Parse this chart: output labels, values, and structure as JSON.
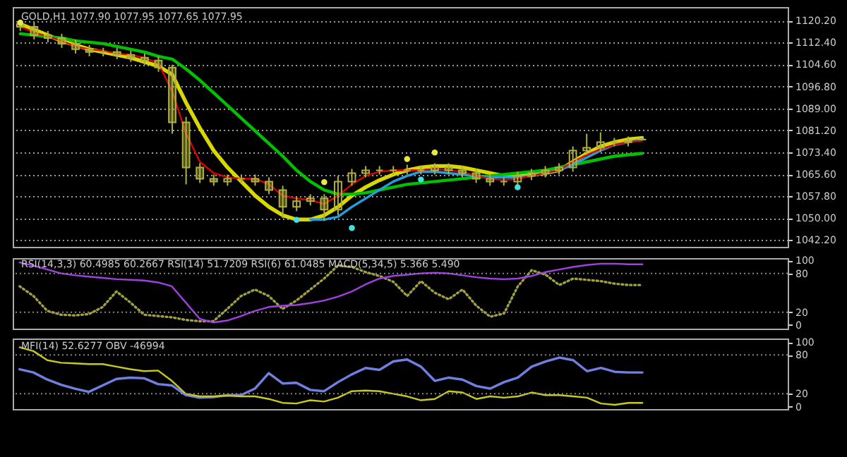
{
  "chart_data": [
    {
      "type": "candlestick",
      "title": "GOLD,H1 1077.90 1077.95 1077.65 1077.95",
      "color": "#b0b040",
      "categories": [
        null,
        null,
        null,
        null,
        null,
        null,
        null,
        null,
        null,
        null,
        null,
        null,
        null,
        null,
        null,
        null,
        null,
        null,
        null,
        null,
        null,
        null,
        null,
        null,
        null,
        null,
        null,
        null,
        null,
        null,
        null,
        null,
        null,
        null,
        null,
        null,
        null,
        null,
        null,
        null,
        null,
        null,
        null,
        null,
        null,
        null,
        null,
        null,
        null,
        null,
        null,
        null,
        null,
        null,
        null,
        null
      ],
      "ohlc": [
        [
          1119,
          1120,
          1116.5,
          1118
        ],
        [
          1118,
          1119.5,
          1113.5,
          1115
        ],
        [
          1115,
          1116.5,
          1112.5,
          1114
        ],
        [
          1114,
          1115.5,
          1110.5,
          1112
        ],
        [
          1112,
          1113.5,
          1108.5,
          1110
        ],
        [
          1110,
          1111.5,
          1107.5,
          1109
        ],
        [
          1109,
          1110.5,
          1107.5,
          1109
        ],
        [
          1109,
          1110.5,
          1106.5,
          1108
        ],
        [
          1108,
          1109.5,
          1105.5,
          1107
        ],
        [
          1107,
          1108.5,
          1104.5,
          1106
        ],
        [
          1106,
          1107.5,
          1102,
          1103.5
        ],
        [
          1103.5,
          1104.5,
          1080,
          1084
        ],
        [
          1084,
          1086,
          1062,
          1068
        ],
        [
          1068,
          1069.5,
          1062.5,
          1064
        ],
        [
          1064,
          1065.5,
          1061.5,
          1063
        ],
        [
          1063,
          1065.5,
          1061.5,
          1064
        ],
        [
          1064,
          1065.5,
          1062.5,
          1064
        ],
        [
          1064,
          1065.5,
          1061.5,
          1063
        ],
        [
          1063,
          1064.5,
          1058.5,
          1060
        ],
        [
          1060,
          1061.5,
          1050,
          1054
        ],
        [
          1054,
          1057.5,
          1052.5,
          1056
        ],
        [
          1056,
          1058.5,
          1054.5,
          1057
        ],
        [
          1057,
          1058.5,
          1049,
          1053
        ],
        [
          1053,
          1065,
          1051,
          1063
        ],
        [
          1063,
          1067.5,
          1061.5,
          1066
        ],
        [
          1066,
          1068.5,
          1064.5,
          1067
        ],
        [
          1067,
          1068.5,
          1065.5,
          1067
        ],
        [
          1067,
          1068.5,
          1065.5,
          1067
        ],
        [
          1067,
          1069,
          1065.5,
          1067
        ],
        [
          1067,
          1068.5,
          1065.5,
          1067
        ],
        [
          1067,
          1069.5,
          1065.5,
          1068
        ],
        [
          1068,
          1069.5,
          1065.5,
          1067
        ],
        [
          1067,
          1068.5,
          1064.5,
          1066
        ],
        [
          1066,
          1067.5,
          1062.5,
          1064
        ],
        [
          1064,
          1065.5,
          1061.5,
          1063
        ],
        [
          1063,
          1064.5,
          1061.5,
          1063
        ],
        [
          1063,
          1066.5,
          1061.5,
          1065
        ],
        [
          1065,
          1067.5,
          1063.5,
          1066
        ],
        [
          1066,
          1068.5,
          1064.5,
          1067
        ],
        [
          1067,
          1069.5,
          1065.5,
          1068
        ],
        [
          1068,
          1075.5,
          1066.5,
          1074
        ],
        [
          1074,
          1080,
          1072.5,
          1075
        ],
        [
          1075,
          1080.5,
          1073.5,
          1077
        ],
        [
          1077,
          1078.5,
          1075.5,
          1077
        ],
        [
          1077,
          1079,
          1075.5,
          1077.5
        ],
        [
          1077.9,
          1077.95,
          1077.65,
          1077.95
        ],
        null,
        null,
        null,
        null,
        null,
        null,
        null,
        null,
        null,
        null
      ],
      "series": [
        {
          "type": "line",
          "color": "#d8d800",
          "values": [
            1119,
            1117,
            1115,
            1113,
            1111.5,
            1110,
            1109,
            1108,
            1107,
            1105.5,
            1104,
            1101,
            1091,
            1082,
            1074,
            1068,
            1063,
            1058,
            1054,
            1051,
            1049.5,
            1049.5,
            1051,
            1054,
            1058,
            1061,
            1063.5,
            1065.5,
            1067,
            1068,
            1068.5,
            1068.5,
            1068,
            1067,
            1066,
            1065,
            1065,
            1065.5,
            1066,
            1067,
            1070,
            1073,
            1075.5,
            1077,
            1078,
            1078.5,
            null,
            null,
            null,
            null,
            null,
            null,
            null,
            null,
            null,
            null
          ]
        },
        {
          "type": "line",
          "color": "#00c000",
          "values": [
            1115.5,
            1115,
            1114.5,
            1114,
            1113,
            1112.5,
            1112,
            1111,
            1110,
            1109,
            1107.5,
            1106.5,
            1103,
            1099,
            1094.5,
            1090,
            1085.5,
            1081,
            1076.5,
            1072,
            1067,
            1063,
            1060,
            1058.5,
            1058.5,
            1059,
            1060,
            1061,
            1062,
            1062.5,
            1063,
            1063.5,
            1064,
            1064.5,
            1065,
            1065.5,
            1066,
            1066.5,
            1067,
            1068,
            1069,
            1070,
            1071,
            1072,
            1072.5,
            1073,
            null,
            null,
            null,
            null,
            null,
            null,
            null,
            null,
            null,
            null
          ]
        },
        {
          "type": "line",
          "color": "#20a0e0",
          "values": [
            null,
            null,
            null,
            null,
            null,
            null,
            null,
            null,
            null,
            null,
            null,
            null,
            null,
            null,
            null,
            null,
            null,
            null,
            null,
            null,
            null,
            1049.5,
            1049.5,
            1050.5,
            1054,
            1057,
            1060,
            1063,
            1065,
            1066.5,
            1066.5,
            1066,
            1065.5,
            1065,
            1064.5,
            1064.5,
            1064.5,
            1065,
            1066,
            1067,
            1069,
            1071.5,
            1074,
            1076,
            1077,
            1078,
            null,
            null,
            null,
            null,
            null,
            null,
            null,
            null,
            null,
            null
          ]
        },
        {
          "type": "line",
          "color": "#e00000",
          "values": [
            1118,
            1116,
            1114.5,
            1113,
            1111,
            1110,
            1109.5,
            1108.5,
            1108,
            1107,
            1105,
            1095,
            1080,
            1070,
            1066,
            1064.5,
            1064,
            1064,
            1062,
            1058,
            1057,
            1056.5,
            1055,
            1058,
            1062,
            1065,
            1066.5,
            1067,
            1067,
            1067,
            1067.5,
            1067,
            1066.5,
            1065,
            1064,
            1063.5,
            1064,
            1065,
            1066,
            1067,
            1070,
            1072.5,
            1074.5,
            1076,
            1077,
            1077.5,
            null,
            null,
            null,
            null,
            null,
            null,
            null,
            null,
            null,
            null
          ]
        },
        {
          "type": "scatter",
          "color": "#e8e840",
          "values": [
            1119.5,
            null,
            null,
            null,
            null,
            null,
            null,
            null,
            null,
            null,
            null,
            null,
            null,
            null,
            null,
            null,
            null,
            null,
            null,
            null,
            null,
            null,
            1062.8,
            null,
            null,
            null,
            null,
            null,
            1071,
            null,
            1073.3,
            null,
            null,
            null,
            null,
            null,
            null,
            null,
            null,
            null,
            null,
            null,
            null,
            null,
            null,
            null,
            null,
            null,
            null,
            null,
            null,
            null,
            null,
            null,
            null,
            null
          ]
        },
        {
          "type": "scatter",
          "color": "#40e0e0",
          "values": [
            null,
            null,
            null,
            null,
            null,
            null,
            null,
            null,
            null,
            null,
            null,
            null,
            null,
            null,
            null,
            null,
            null,
            null,
            null,
            null,
            1049.4,
            null,
            null,
            null,
            1046.5,
            null,
            null,
            null,
            null,
            1063.7,
            null,
            null,
            null,
            null,
            null,
            null,
            1061,
            null,
            null,
            null,
            null,
            null,
            null,
            null,
            null,
            null,
            null,
            null,
            null,
            null,
            null,
            null,
            null,
            null,
            null,
            null
          ]
        }
      ],
      "ylim": [
        1039.8,
        1125
      ],
      "yticks": [
        {
          "value": 1120.2,
          "label": "1120.20"
        },
        {
          "value": 1112.4,
          "label": "1112.40"
        },
        {
          "value": 1104.6,
          "label": "1104.60"
        },
        {
          "value": 1096.8,
          "label": "1096.80"
        },
        {
          "value": 1089,
          "label": "1089.00"
        },
        {
          "value": 1081.2,
          "label": "1081.20"
        },
        {
          "value": 1073.4,
          "label": "1073.40"
        },
        {
          "value": 1065.6,
          "label": "1065.60"
        },
        {
          "value": 1057.8,
          "label": "1057.80"
        },
        {
          "value": 1050,
          "label": "1050.00"
        },
        {
          "value": 1042.2,
          "label": "1042.20"
        }
      ],
      "grid": "y",
      "tick_labels": "y"
    },
    {
      "type": "line",
      "title": "RSI(14,3,3) 60.4985 60.2667 RSI(14) 51.7209 RSI(6) 61.0485 MACD(5,34,5) 5.366 5.490",
      "categories": [
        null,
        null,
        null,
        null,
        null,
        null,
        null,
        null,
        null,
        null,
        null,
        null,
        null,
        null,
        null,
        null,
        null,
        null,
        null,
        null,
        null,
        null,
        null,
        null,
        null,
        null,
        null,
        null,
        null,
        null,
        null,
        null,
        null,
        null,
        null,
        null,
        null,
        null,
        null,
        null,
        null,
        null,
        null,
        null,
        null,
        null,
        null,
        null,
        null,
        null,
        null,
        null,
        null,
        null,
        null,
        null
      ],
      "series": [
        {
          "color": "#a0a040",
          "line_style": "dotted",
          "values": [
            60,
            45,
            22,
            16,
            15,
            17,
            28,
            52,
            35,
            16,
            14,
            12,
            8,
            6,
            6,
            25,
            45,
            55,
            45,
            25,
            38,
            55,
            72,
            92,
            90,
            82,
            76,
            67,
            45,
            68,
            50,
            40,
            55,
            30,
            13,
            18,
            60,
            85,
            78,
            62,
            72,
            70,
            68,
            64,
            62,
            62,
            null,
            null,
            null,
            null,
            null,
            null,
            null,
            null,
            null,
            null
          ]
        },
        {
          "color": "#a040e0",
          "values": [
            97,
            92,
            86,
            80,
            77,
            75,
            73,
            71,
            70,
            69,
            66,
            60,
            35,
            10,
            4,
            7,
            14,
            22,
            28,
            30,
            31,
            34,
            38,
            44,
            52,
            63,
            72,
            76,
            78,
            80,
            81,
            80,
            77,
            74,
            72,
            71,
            72,
            76,
            82,
            86,
            90,
            93,
            95,
            95,
            94,
            94,
            null,
            null,
            null,
            null,
            null,
            null,
            null,
            null,
            null,
            null
          ]
        }
      ],
      "ylim": [
        -5.5,
        103.6
      ],
      "yticks": [
        0,
        20,
        80,
        100
      ],
      "tick_labels": "y",
      "ref_lines": [
        {
          "axis": "y",
          "value": 80,
          "line_style": "dotted",
          "color": "#888888"
        },
        {
          "axis": "y",
          "value": 20,
          "line_style": "dotted",
          "color": "#888888"
        }
      ]
    },
    {
      "type": "line",
      "title": "MFI(14) 52.6277 OBV -46994",
      "categories": [
        null,
        null,
        null,
        null,
        null,
        null,
        null,
        null,
        null,
        null,
        null,
        null,
        null,
        null,
        null,
        null,
        null,
        null,
        null,
        null,
        null,
        null,
        null,
        null,
        null,
        null,
        null,
        null,
        null,
        null,
        null,
        null,
        null,
        null,
        null,
        null,
        null,
        null,
        null,
        null,
        null,
        null,
        null,
        null,
        null,
        null,
        null,
        null,
        null,
        null,
        null,
        null,
        null,
        null,
        null,
        null
      ],
      "series": [
        {
          "color": "#7080e0",
          "values": [
            58,
            53,
            42,
            34,
            28,
            23,
            33,
            43,
            45,
            44,
            35,
            33,
            18,
            14,
            15,
            18,
            18,
            28,
            52,
            36,
            37,
            26,
            24,
            38,
            50,
            60,
            57,
            70,
            73,
            62,
            40,
            45,
            42,
            32,
            28,
            38,
            45,
            62,
            70,
            76,
            72,
            55,
            60,
            54,
            53,
            53,
            null,
            null,
            null,
            null,
            null,
            null,
            null,
            null,
            null,
            null
          ]
        },
        {
          "color": "#c8c820",
          "values": [
            92,
            86,
            72,
            68,
            67,
            66,
            66,
            62,
            58,
            55,
            56,
            40,
            20,
            16,
            16,
            17,
            16,
            16,
            12,
            6,
            5,
            10,
            8,
            14,
            24,
            25,
            24,
            20,
            16,
            10,
            12,
            24,
            22,
            12,
            16,
            14,
            16,
            22,
            18,
            18,
            16,
            14,
            5,
            3,
            6,
            6,
            null,
            null,
            null,
            null,
            null,
            null,
            null,
            null,
            null,
            null
          ]
        }
      ],
      "ylim": [
        -3.6,
        105.5
      ],
      "yticks": [
        0,
        20,
        80,
        100
      ],
      "tick_labels": "y",
      "ref_lines": [
        {
          "axis": "y",
          "value": 80,
          "line_style": "dotted",
          "color": "#888888"
        },
        {
          "axis": "y",
          "value": 20,
          "line_style": "dotted",
          "color": "#888888"
        }
      ]
    }
  ]
}
